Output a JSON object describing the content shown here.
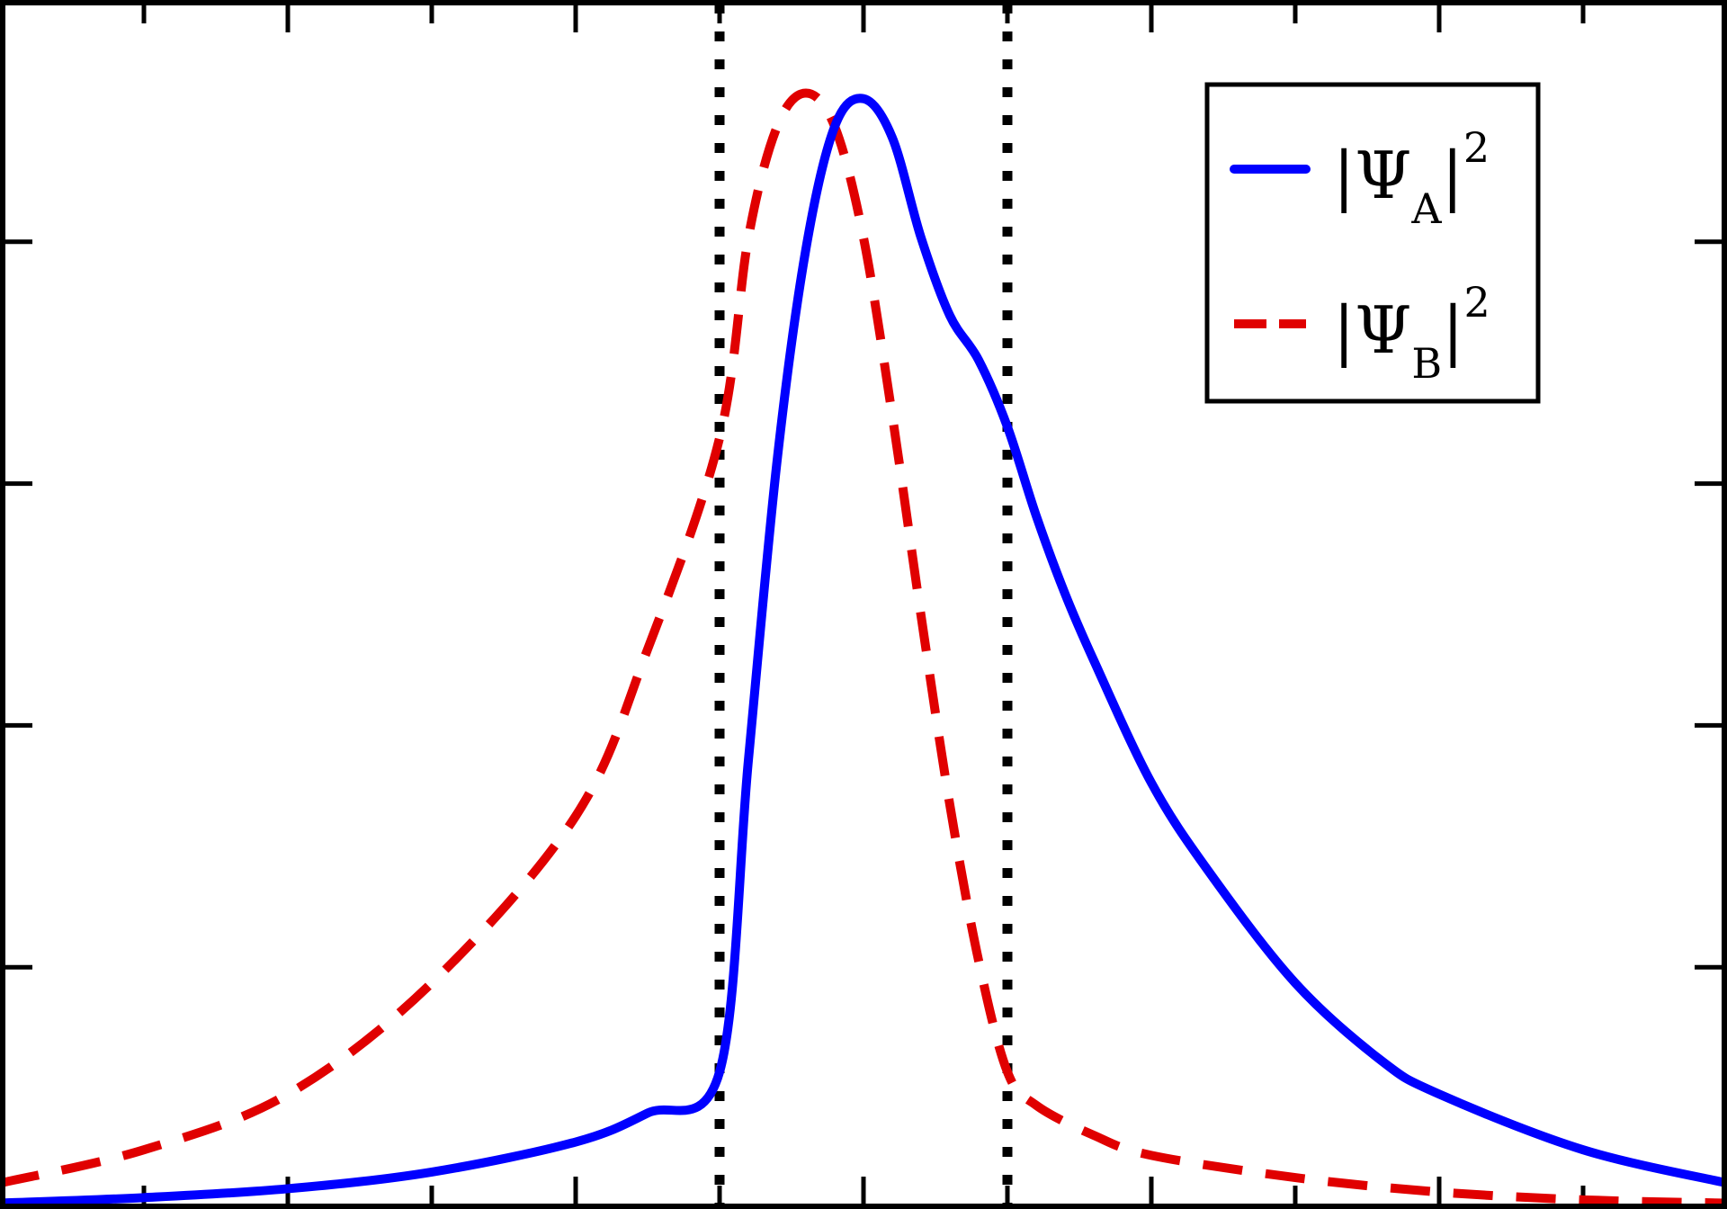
{
  "chart_data": {
    "type": "line",
    "title": "",
    "xlabel": "",
    "ylabel": "",
    "xlim": [
      0,
      6
    ],
    "ylim": [
      0,
      1.0
    ],
    "xticks": [
      0,
      0.5,
      1,
      1.5,
      2,
      2.5,
      3,
      3.5,
      4,
      4.5,
      5,
      5.5,
      6
    ],
    "yticks": [
      0,
      0.2,
      0.4,
      0.6,
      0.8,
      1.0
    ],
    "tick_labels_visible": false,
    "grid": false,
    "legend_position": "top-right",
    "vlines": [
      {
        "x": 2.5,
        "style": "dotted",
        "color": "#000000"
      },
      {
        "x": 3.5,
        "style": "dotted",
        "color": "#000000"
      }
    ],
    "series": [
      {
        "name": "|Ψ_A|²",
        "label_main": "|Ψ",
        "label_sub": "A",
        "label_bar": "|",
        "label_sup": "2",
        "color": "#0000ff",
        "style": "solid",
        "x": [
          0,
          0.5,
          1,
          1.5,
          2,
          2.25,
          2.5,
          2.6,
          2.7,
          2.8,
          2.9,
          3.0,
          3.1,
          3.2,
          3.3,
          3.4,
          3.5,
          3.6,
          3.7,
          3.8,
          4.0,
          4.2,
          4.5,
          4.8,
          5.0,
          5.5,
          6.0
        ],
        "y": [
          0.002,
          0.007,
          0.015,
          0.03,
          0.057,
          0.083,
          0.12,
          0.4,
          0.67,
          0.86,
          0.97,
          0.995,
          0.96,
          0.87,
          0.8,
          0.76,
          0.7,
          0.62,
          0.55,
          0.49,
          0.38,
          0.3,
          0.2,
          0.13,
          0.1,
          0.05,
          0.02
        ]
      },
      {
        "name": "|Ψ_B|²",
        "label_main": "|Ψ",
        "label_sub": "B",
        "label_bar": "|",
        "label_sup": "2",
        "color": "#e00000",
        "style": "dashed",
        "x": [
          0,
          0.5,
          1,
          1.5,
          2,
          2.25,
          2.5,
          2.6,
          2.7,
          2.8,
          2.9,
          3.0,
          3.1,
          3.2,
          3.3,
          3.4,
          3.5,
          3.6,
          3.8,
          4.0,
          4.5,
          5.0,
          5.5,
          6.0
        ],
        "y": [
          0.02,
          0.05,
          0.1,
          0.2,
          0.35,
          0.5,
          0.69,
          0.87,
          0.97,
          1.0,
          0.97,
          0.87,
          0.71,
          0.53,
          0.36,
          0.22,
          0.12,
          0.09,
          0.063,
          0.045,
          0.025,
          0.012,
          0.005,
          0.002
        ]
      }
    ]
  }
}
